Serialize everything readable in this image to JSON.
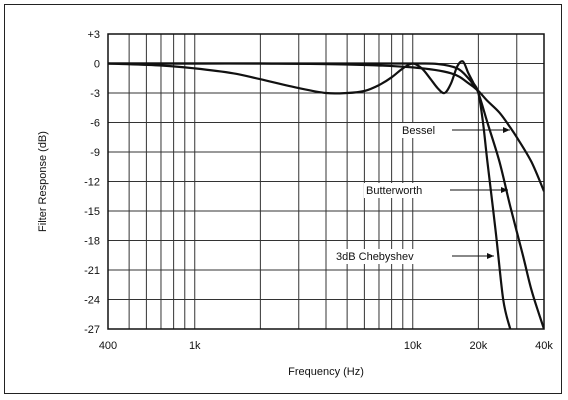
{
  "chart_data": {
    "type": "line",
    "title": "",
    "xlabel": "Frequency (Hz)",
    "ylabel": "Filter Response (dB)",
    "xscale": "log",
    "xlim": [
      400,
      40000
    ],
    "ylim": [
      -27,
      3
    ],
    "grid": true,
    "x_ticks": [
      400,
      1000,
      10000,
      20000,
      40000
    ],
    "x_tick_labels": [
      "400",
      "1k",
      "10k",
      "20k",
      "40k"
    ],
    "y_ticks": [
      3,
      0,
      -3,
      -6,
      -9,
      -12,
      -15,
      -18,
      -21,
      -24,
      -27
    ],
    "y_tick_labels": [
      "+3",
      "0",
      "-3",
      "-6",
      "-9",
      "-12",
      "-15",
      "-18",
      "-21",
      "-24",
      "-27"
    ],
    "series": [
      {
        "name": "Bessel",
        "x": [
          400,
          1000,
          2000,
          5000,
          10000,
          15000,
          18000,
          20000,
          22000,
          25000,
          28000,
          30000,
          35000,
          40000
        ],
        "y": [
          0,
          0,
          0,
          -0.1,
          -0.4,
          -1.0,
          -2.0,
          -2.8,
          -3.8,
          -5.0,
          -6.5,
          -7.5,
          -10.0,
          -13.0
        ]
      },
      {
        "name": "Butterworth",
        "x": [
          400,
          1000,
          2000,
          5000,
          10000,
          13000,
          16000,
          18000,
          19000,
          20000,
          22000,
          25000,
          28000,
          32000,
          35000,
          38000,
          40000
        ],
        "y": [
          0,
          0,
          0,
          0,
          0,
          -0.05,
          -0.5,
          -1.5,
          -2.2,
          -3.0,
          -6.0,
          -10.0,
          -14.5,
          -19.5,
          -23.0,
          -25.5,
          -27
        ]
      },
      {
        "name": "3dB Chebyshev",
        "x": [
          400,
          700,
          1000,
          1500,
          2000,
          3000,
          4000,
          5000,
          6000,
          7000,
          8000,
          9000,
          10000,
          11000,
          12000,
          13000,
          14000,
          15000,
          16000,
          17000,
          18000,
          19000,
          20000,
          21000,
          22000,
          24000,
          26000,
          28000
        ],
        "y": [
          0,
          -0.2,
          -0.5,
          -1.0,
          -1.6,
          -2.5,
          -3.0,
          -3.0,
          -2.8,
          -2.2,
          -1.4,
          -0.5,
          0,
          -0.5,
          -1.5,
          -2.5,
          -3.0,
          -2.0,
          -0.3,
          0.2,
          -1.0,
          -2.0,
          -3.0,
          -6.0,
          -10.0,
          -17.0,
          -24.0,
          -27
        ]
      }
    ],
    "annotations": [
      {
        "text": "Bessel",
        "series": "Bessel"
      },
      {
        "text": "Butterworth",
        "series": "Butterworth"
      },
      {
        "text": "3dB Chebyshev",
        "series": "3dB Chebyshev"
      }
    ]
  }
}
